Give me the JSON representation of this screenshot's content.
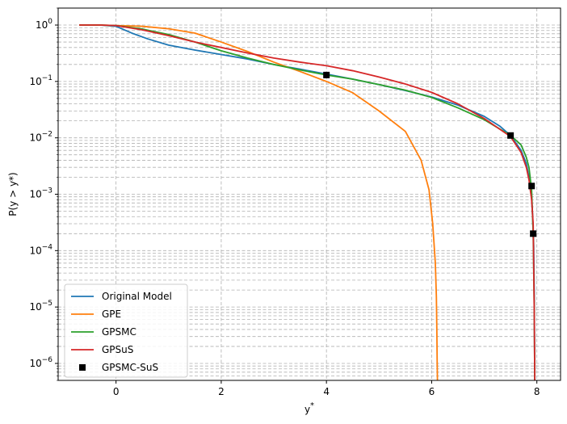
{
  "chart_data": {
    "type": "line",
    "title": "",
    "xlabel": "y",
    "xlabel_superscript": "*",
    "ylabel": "P(y > y*)",
    "xscale": "linear",
    "yscale": "log",
    "xlim": [
      -1.1,
      8.45
    ],
    "ylim": [
      5e-07,
      2
    ],
    "x_ticks": [
      0,
      2,
      4,
      6,
      8
    ],
    "x_tick_labels": [
      "0",
      "2",
      "4",
      "6",
      "8"
    ],
    "y_ticks": [
      1e-06,
      1e-05,
      0.0001,
      0.001,
      0.01,
      0.1,
      1
    ],
    "y_tick_labels": [
      {
        "base": "10",
        "exp": "−6"
      },
      {
        "base": "10",
        "exp": "−5"
      },
      {
        "base": "10",
        "exp": "−4"
      },
      {
        "base": "10",
        "exp": "−3"
      },
      {
        "base": "10",
        "exp": "−2"
      },
      {
        "base": "10",
        "exp": "−1"
      },
      {
        "base": "10",
        "exp": "0"
      }
    ],
    "grid": true,
    "grid_minor_y": true,
    "legend_position": "lower-left",
    "series": [
      {
        "name": "Original Model",
        "kind": "line",
        "color": "#1f77b4",
        "x": [
          -0.7,
          -0.3,
          0,
          0.3,
          0.6,
          1.0,
          1.5,
          2.0,
          2.5,
          3.0,
          3.5,
          4.0,
          4.5,
          5.0,
          5.5,
          6.0,
          6.5,
          7.0,
          7.3,
          7.5,
          7.7,
          7.8,
          7.85,
          7.9,
          7.92,
          7.94,
          7.95,
          7.96
        ],
        "y": [
          1.0,
          1.0,
          0.95,
          0.72,
          0.57,
          0.44,
          0.36,
          0.3,
          0.25,
          0.2,
          0.165,
          0.135,
          0.11,
          0.088,
          0.069,
          0.053,
          0.038,
          0.024,
          0.016,
          0.011,
          0.006,
          0.0035,
          0.002,
          0.0009,
          0.0004,
          0.00012,
          2e-05,
          5e-07
        ]
      },
      {
        "name": "GPE",
        "kind": "line",
        "color": "#ff7f0e",
        "x": [
          -0.7,
          -0.3,
          0,
          0.5,
          1.0,
          1.5,
          2.0,
          2.5,
          3.0,
          3.5,
          4.0,
          4.5,
          5.0,
          5.5,
          5.8,
          5.95,
          6.02,
          6.07,
          6.09,
          6.1,
          6.105,
          6.11
        ],
        "y": [
          1.0,
          1.0,
          0.98,
          0.95,
          0.86,
          0.72,
          0.5,
          0.34,
          0.22,
          0.15,
          0.1,
          0.063,
          0.03,
          0.013,
          0.004,
          0.0012,
          0.0003,
          6e-05,
          1.5e-05,
          3e-06,
          1e-06,
          5e-07
        ]
      },
      {
        "name": "GPSMC",
        "kind": "line",
        "color": "#2ca02c",
        "x": [
          -0.7,
          -0.3,
          0,
          0.5,
          1.0,
          1.5,
          2.0,
          2.5,
          3.0,
          3.5,
          4.0,
          4.5,
          5.0,
          5.5,
          6.0,
          6.5,
          7.0,
          7.5,
          7.7,
          7.8,
          7.85,
          7.9,
          7.93,
          7.95,
          7.96
        ],
        "y": [
          1.0,
          1.0,
          0.98,
          0.85,
          0.68,
          0.5,
          0.35,
          0.26,
          0.2,
          0.16,
          0.13,
          0.11,
          0.088,
          0.07,
          0.052,
          0.034,
          0.021,
          0.011,
          0.0075,
          0.0045,
          0.003,
          0.0012,
          0.0002,
          1e-05,
          5e-07
        ]
      },
      {
        "name": "GPSuS",
        "kind": "line",
        "color": "#d62728",
        "x": [
          -0.7,
          -0.3,
          0,
          0.5,
          1.0,
          1.5,
          2.0,
          2.5,
          3.0,
          3.5,
          4.0,
          4.5,
          5.0,
          5.5,
          6.0,
          6.5,
          7.0,
          7.5,
          7.7,
          7.8,
          7.85,
          7.9,
          7.93,
          7.95,
          7.96
        ],
        "y": [
          1.0,
          1.0,
          0.98,
          0.82,
          0.65,
          0.5,
          0.4,
          0.32,
          0.26,
          0.22,
          0.19,
          0.155,
          0.12,
          0.09,
          0.064,
          0.04,
          0.022,
          0.0105,
          0.0055,
          0.003,
          0.0018,
          0.0008,
          0.0003,
          1e-05,
          5e-07
        ]
      },
      {
        "name": "GPSMC-SuS",
        "kind": "scatter",
        "marker": "square",
        "color": "#000000",
        "x": [
          4.0,
          7.5,
          7.9,
          7.93
        ],
        "y": [
          0.13,
          0.011,
          0.0014,
          0.0002
        ]
      }
    ]
  }
}
